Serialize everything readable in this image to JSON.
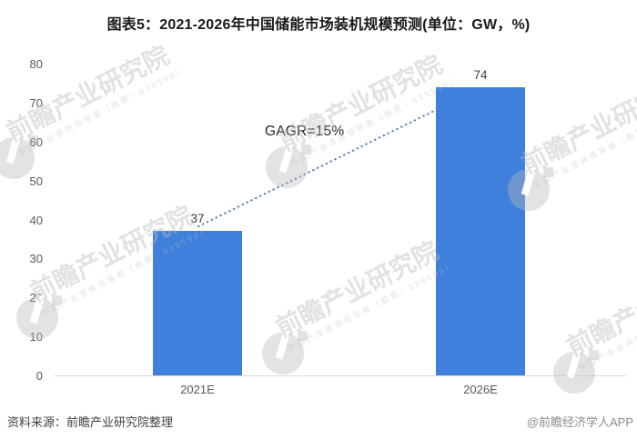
{
  "title": "图表5：2021-2026年中国储能市场装机规模预测(单位：GW，%)",
  "chart_data": {
    "type": "bar",
    "title": "图表5：2021-2026年中国储能市场装机规模预测(单位：GW，%)",
    "categories": [
      "2021E",
      "2026E"
    ],
    "values": [
      37,
      74
    ],
    "unit_note": "单位：GW，%",
    "xlabel": "",
    "ylabel": "",
    "ylim": [
      0,
      80
    ],
    "yticks": [
      0,
      10,
      20,
      30,
      40,
      50,
      60,
      70,
      80
    ],
    "grid": false,
    "legend_position": "none",
    "annotation": "GAGR=15%",
    "annotation_type": "dotted-trend-line",
    "bar_color": "#3E80DC",
    "trend_line_color": "#5580B8",
    "axis_line_color": "#d9d9d9",
    "tick_label_color": "#595959",
    "value_label_color": "#404040"
  },
  "footer": {
    "source": "资料来源：前瞻产业研究院整理",
    "credit": "@前瞻经济学人APP"
  },
  "watermark": {
    "icon": "qianzhan-logo-icon",
    "text": "前瞻产业研究院",
    "subtext": "中国产业咨询领导者（股票：839599）"
  }
}
